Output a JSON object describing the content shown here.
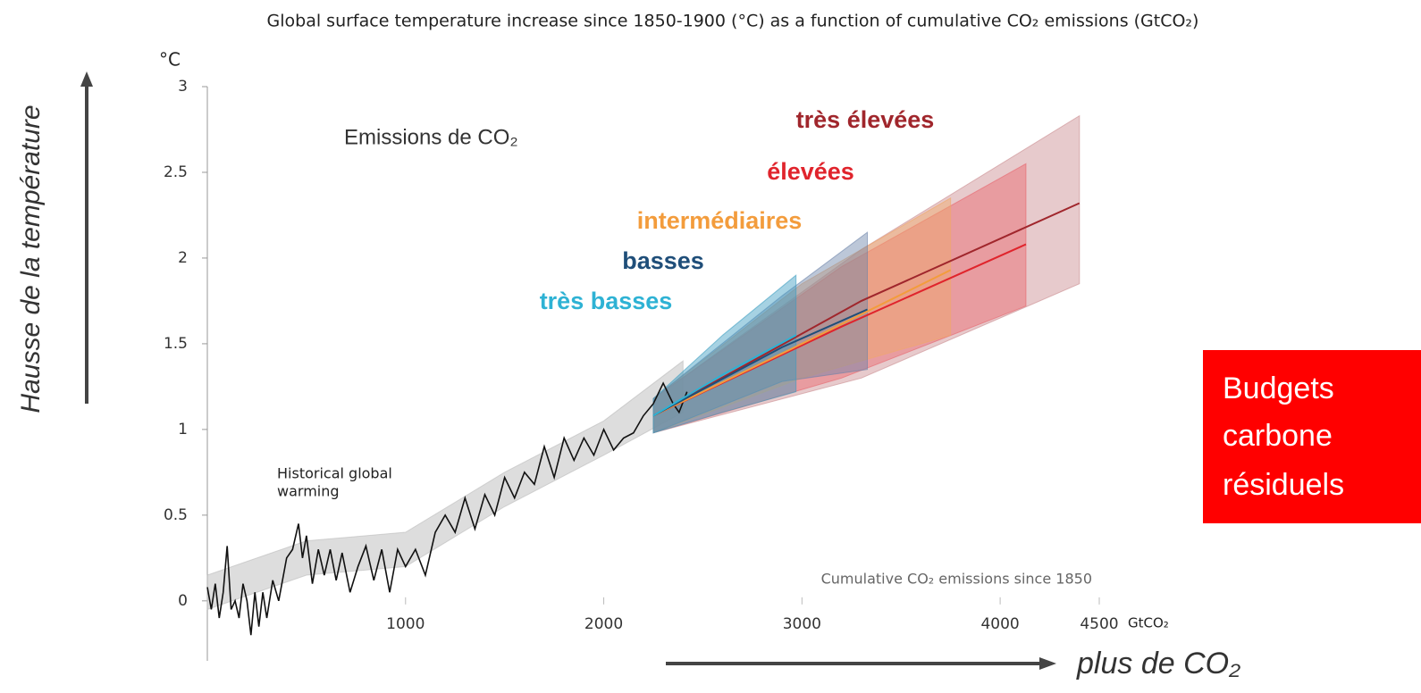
{
  "chart_data": {
    "type": "line",
    "title": "Global surface temperature increase since 1850-1900 (°C) as a function of cumulative CO₂ emissions (GtCO₂)",
    "y_unit": "°C",
    "x_unit": "GtCO₂",
    "xlim": [
      0,
      4500
    ],
    "xticks": [
      1000,
      2000,
      3000,
      4000,
      4500
    ],
    "ylim": [
      -0.35,
      3
    ],
    "yticks": [
      0,
      0.5,
      1,
      1.5,
      2,
      2.5,
      3
    ],
    "annotations": {
      "emissions": "Emissions de CO₂",
      "historical": [
        "Historical global",
        "warming"
      ],
      "cumulative": "Cumulative CO₂ emissions since 1850"
    },
    "y_arrow_label": "Hausse de la température",
    "x_arrow_label": "plus de CO₂",
    "box_label": [
      "Budgets",
      "carbone",
      "résiduels"
    ],
    "historical_band": {
      "color": "#bbbbbb",
      "x": [
        0,
        500,
        1000,
        1500,
        2000,
        2400
      ],
      "lower": [
        -0.05,
        0.15,
        0.2,
        0.55,
        0.85,
        1.1
      ],
      "upper": [
        0.15,
        0.35,
        0.4,
        0.75,
        1.05,
        1.4
      ]
    },
    "historical": {
      "color": "#111111",
      "x": [
        0,
        20,
        40,
        60,
        80,
        100,
        120,
        140,
        160,
        180,
        200,
        220,
        240,
        260,
        280,
        300,
        330,
        360,
        400,
        430,
        460,
        480,
        500,
        530,
        560,
        590,
        620,
        650,
        680,
        720,
        760,
        800,
        840,
        880,
        920,
        960,
        1000,
        1050,
        1100,
        1150,
        1200,
        1250,
        1300,
        1350,
        1400,
        1450,
        1500,
        1550,
        1600,
        1650,
        1700,
        1750,
        1800,
        1850,
        1900,
        1950,
        2000,
        2050,
        2100,
        2150,
        2200,
        2250,
        2300,
        2350,
        2380,
        2420
      ],
      "values": [
        0.08,
        -0.05,
        0.1,
        -0.1,
        0.05,
        0.32,
        -0.05,
        0.0,
        -0.1,
        0.1,
        0.0,
        -0.2,
        0.05,
        -0.15,
        0.05,
        -0.1,
        0.12,
        0.0,
        0.25,
        0.3,
        0.45,
        0.25,
        0.38,
        0.1,
        0.3,
        0.15,
        0.3,
        0.12,
        0.28,
        0.05,
        0.2,
        0.32,
        0.12,
        0.3,
        0.05,
        0.3,
        0.2,
        0.3,
        0.15,
        0.4,
        0.5,
        0.4,
        0.6,
        0.42,
        0.62,
        0.5,
        0.72,
        0.6,
        0.75,
        0.68,
        0.9,
        0.72,
        0.95,
        0.82,
        0.95,
        0.85,
        1.0,
        0.88,
        0.95,
        0.98,
        1.08,
        1.15,
        1.27,
        1.15,
        1.1,
        1.22
      ]
    },
    "series": [
      {
        "name": "très élevées",
        "color": "#a0262c",
        "band_color": "#c98a8e",
        "x": [
          2250,
          3300,
          4400
        ],
        "values": [
          1.08,
          1.75,
          2.32
        ],
        "lower": [
          0.98,
          1.3,
          1.85
        ],
        "upper": [
          1.18,
          2.05,
          2.83
        ]
      },
      {
        "name": "élevées",
        "color": "#e0242c",
        "band_color": "#e8636a",
        "x": [
          2250,
          3200,
          4130
        ],
        "values": [
          1.08,
          1.6,
          2.08
        ],
        "lower": [
          0.98,
          1.3,
          1.72
        ],
        "upper": [
          1.18,
          1.95,
          2.55
        ]
      },
      {
        "name": "intermédiaires",
        "color": "#f39c3c",
        "band_color": "#f0a868",
        "x": [
          2250,
          3000,
          3750
        ],
        "values": [
          1.08,
          1.5,
          1.93
        ],
        "lower": [
          0.98,
          1.3,
          1.55
        ],
        "upper": [
          1.18,
          1.85,
          2.35
        ]
      },
      {
        "name": "basses",
        "color": "#1f4e79",
        "band_color": "#6b82a8",
        "x": [
          2250,
          2900,
          3330
        ],
        "values": [
          1.08,
          1.48,
          1.7
        ],
        "lower": [
          0.98,
          1.28,
          1.35
        ],
        "upper": [
          1.18,
          1.78,
          2.15
        ]
      },
      {
        "name": "très basses",
        "color": "#2eb2d4",
        "band_color": "#3a9cc0",
        "x": [
          2250,
          2600,
          2970
        ],
        "values": [
          1.08,
          1.32,
          1.55
        ],
        "lower": [
          0.98,
          1.1,
          1.22
        ],
        "upper": [
          1.18,
          1.55,
          1.9
        ]
      }
    ]
  }
}
